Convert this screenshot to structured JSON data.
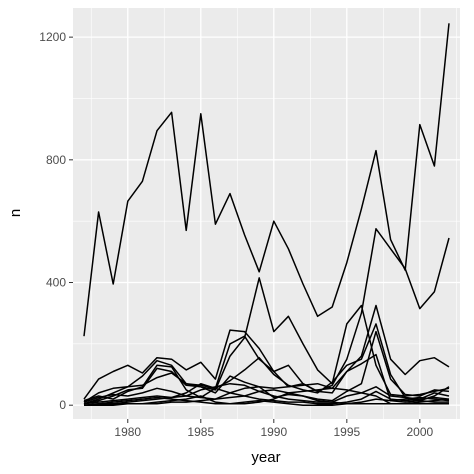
{
  "chart_data": {
    "type": "line",
    "xlabel": "year",
    "ylabel": "n",
    "xlim": [
      1976.25,
      2002.75
    ],
    "ylim": [
      -45,
      1295
    ],
    "x_ticks": [
      1980,
      1985,
      1990,
      1995,
      2000
    ],
    "y_ticks": [
      0,
      400,
      800,
      1200
    ],
    "x": [
      1977,
      1978,
      1979,
      1980,
      1981,
      1982,
      1983,
      1984,
      1985,
      1986,
      1987,
      1988,
      1989,
      1990,
      1991,
      1992,
      1993,
      1994,
      1995,
      1996,
      1997,
      1998,
      1999,
      2000,
      2001,
      2002
    ],
    "grid": true,
    "legend": "none",
    "colors": {
      "panel": "#ebebeb",
      "grid": "#ffffff",
      "line": "#000000",
      "tick_text": "#4d4d4d"
    },
    "series": [
      {
        "values": [
          225,
          630,
          395,
          665,
          730,
          895,
          955,
          570,
          950,
          590,
          690,
          555,
          435,
          600,
          510,
          395,
          290,
          320,
          465,
          640,
          830,
          540,
          440,
          915,
          780,
          1245
        ]
      },
      {
        "values": [
          20,
          85,
          110,
          130,
          105,
          155,
          150,
          115,
          140,
          85,
          245,
          240,
          185,
          110,
          60,
          70,
          45,
          65,
          150,
          300,
          575,
          510,
          445,
          315,
          370,
          545
        ]
      },
      {
        "values": [
          10,
          40,
          55,
          60,
          95,
          145,
          130,
          70,
          60,
          50,
          160,
          220,
          415,
          240,
          290,
          200,
          115,
          70,
          265,
          325,
          130,
          35,
          30,
          35,
          45,
          55
        ]
      },
      {
        "values": [
          5,
          20,
          40,
          60,
          65,
          90,
          105,
          70,
          65,
          55,
          200,
          225,
          150,
          110,
          130,
          70,
          45,
          40,
          110,
          160,
          325,
          150,
          100,
          145,
          155,
          125
        ]
      },
      {
        "values": [
          15,
          30,
          20,
          45,
          60,
          130,
          125,
          50,
          25,
          55,
          80,
          115,
          155,
          100,
          65,
          50,
          40,
          75,
          130,
          150,
          265,
          100,
          25,
          20,
          40,
          30
        ]
      },
      {
        "values": [
          5,
          15,
          30,
          50,
          55,
          120,
          110,
          65,
          60,
          40,
          95,
          75,
          60,
          55,
          60,
          65,
          70,
          55,
          110,
          135,
          165,
          15,
          20,
          25,
          20,
          15
        ]
      },
      {
        "values": [
          10,
          25,
          35,
          30,
          40,
          55,
          45,
          30,
          25,
          20,
          40,
          55,
          60,
          25,
          35,
          30,
          20,
          15,
          45,
          70,
          240,
          85,
          35,
          30,
          50,
          45
        ]
      },
      {
        "values": [
          5,
          10,
          15,
          20,
          25,
          30,
          25,
          30,
          50,
          60,
          70,
          65,
          45,
          30,
          20,
          15,
          10,
          10,
          30,
          40,
          60,
          30,
          25,
          15,
          10,
          10
        ]
      },
      {
        "values": [
          0,
          5,
          5,
          10,
          15,
          20,
          25,
          40,
          70,
          55,
          40,
          30,
          20,
          15,
          10,
          10,
          5,
          5,
          10,
          20,
          45,
          20,
          15,
          20,
          25,
          20
        ]
      },
      {
        "values": [
          0,
          0,
          5,
          5,
          5,
          10,
          15,
          20,
          30,
          10,
          5,
          5,
          10,
          20,
          40,
          45,
          50,
          55,
          50,
          40,
          30,
          5,
          5,
          10,
          15,
          20
        ]
      },
      {
        "values": [
          0,
          0,
          0,
          5,
          5,
          5,
          10,
          10,
          15,
          20,
          25,
          30,
          45,
          50,
          40,
          30,
          15,
          10,
          5,
          5,
          5,
          5,
          5,
          5,
          5,
          5
        ]
      },
      {
        "values": [
          0,
          5,
          10,
          15,
          20,
          25,
          20,
          15,
          10,
          5,
          5,
          10,
          15,
          10,
          5,
          0,
          0,
          0,
          5,
          10,
          20,
          15,
          10,
          15,
          30,
          60
        ]
      }
    ]
  }
}
